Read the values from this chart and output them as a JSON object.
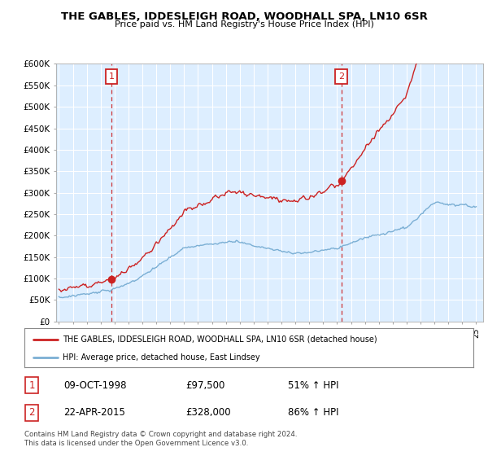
{
  "title": "THE GABLES, IDDESLEIGH ROAD, WOODHALL SPA, LN10 6SR",
  "subtitle": "Price paid vs. HM Land Registry's House Price Index (HPI)",
  "ylabel_ticks": [
    "£0",
    "£50K",
    "£100K",
    "£150K",
    "£200K",
    "£250K",
    "£300K",
    "£350K",
    "£400K",
    "£450K",
    "£500K",
    "£550K",
    "£600K"
  ],
  "ytick_values": [
    0,
    50000,
    100000,
    150000,
    200000,
    250000,
    300000,
    350000,
    400000,
    450000,
    500000,
    550000,
    600000
  ],
  "ylim": [
    0,
    600000
  ],
  "xlim_start": 1994.8,
  "xlim_end": 2025.5,
  "hpi_color": "#7bafd4",
  "price_color": "#cc2222",
  "marker1_date": 1998.78,
  "marker1_price": 97500,
  "marker1_label": "1",
  "marker2_date": 2015.31,
  "marker2_price": 328000,
  "marker2_label": "2",
  "vline1_x": 1998.78,
  "vline2_x": 2015.31,
  "legend_line1": "THE GABLES, IDDESLEIGH ROAD, WOODHALL SPA, LN10 6SR (detached house)",
  "legend_line2": "HPI: Average price, detached house, East Lindsey",
  "table_row1_num": "1",
  "table_row1_date": "09-OCT-1998",
  "table_row1_price": "£97,500",
  "table_row1_hpi": "51% ↑ HPI",
  "table_row2_num": "2",
  "table_row2_date": "22-APR-2015",
  "table_row2_price": "£328,000",
  "table_row2_hpi": "86% ↑ HPI",
  "footnote": "Contains HM Land Registry data © Crown copyright and database right 2024.\nThis data is licensed under the Open Government Licence v3.0.",
  "background_color": "#ffffff",
  "plot_bg_color": "#ddeeff"
}
